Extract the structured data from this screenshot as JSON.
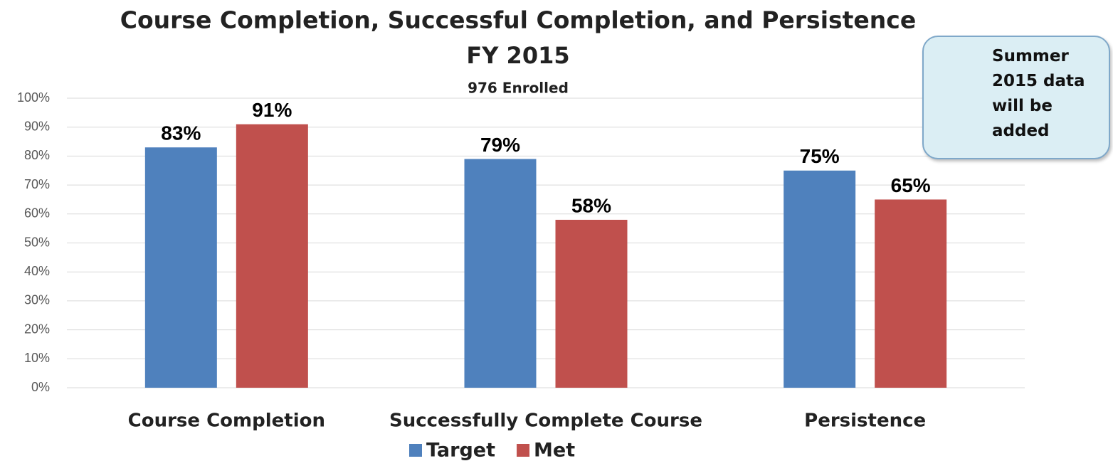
{
  "chart_data": {
    "type": "bar",
    "title": "Course Completion, Successful Completion, and Persistence",
    "subtitle": "FY 2015",
    "subtitle2": "976 Enrolled",
    "annotation": "Summer 2015 data will be added",
    "categories": [
      "Course Completion",
      "Successfully Complete Course",
      "Persistence"
    ],
    "series": [
      {
        "name": "Target",
        "color": "#4f81bd",
        "values": [
          83,
          79,
          75
        ],
        "value_labels": [
          "83%",
          "79%",
          "75%"
        ]
      },
      {
        "name": "Met",
        "color": "#c0504d",
        "values": [
          91,
          58,
          65
        ],
        "value_labels": [
          "91%",
          "58%",
          "65%"
        ]
      }
    ],
    "ylim": [
      0,
      100
    ],
    "yticks": [
      {
        "value": 0,
        "label": "0%"
      },
      {
        "value": 10,
        "label": "10%"
      },
      {
        "value": 20,
        "label": "20%"
      },
      {
        "value": 30,
        "label": "30%"
      },
      {
        "value": 40,
        "label": "40%"
      },
      {
        "value": 50,
        "label": "50%"
      },
      {
        "value": 60,
        "label": "60%"
      },
      {
        "value": 70,
        "label": "70%"
      },
      {
        "value": 80,
        "label": "80%"
      },
      {
        "value": 90,
        "label": "90%"
      },
      {
        "value": 100,
        "label": "100%"
      }
    ],
    "grid": true,
    "legend": "bottom"
  }
}
